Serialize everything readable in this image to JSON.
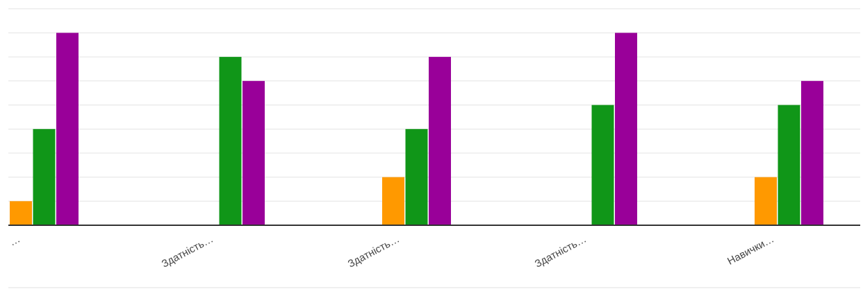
{
  "chart_data": {
    "type": "bar",
    "categories": [
      "…",
      "Здатність…",
      "Здатність…",
      "Здатність…",
      "Навички…"
    ],
    "series": [
      {
        "color": "#ff9900",
        "values": [
          1,
          0,
          2,
          0,
          2
        ]
      },
      {
        "color": "#109618",
        "values": [
          4,
          7,
          4,
          5,
          5
        ]
      },
      {
        "color": "#990099",
        "values": [
          8,
          6,
          7,
          8,
          6
        ]
      }
    ],
    "ylim": [
      0,
      9
    ],
    "grid": true,
    "legend": "none",
    "xlabel": "",
    "ylabel": ""
  }
}
